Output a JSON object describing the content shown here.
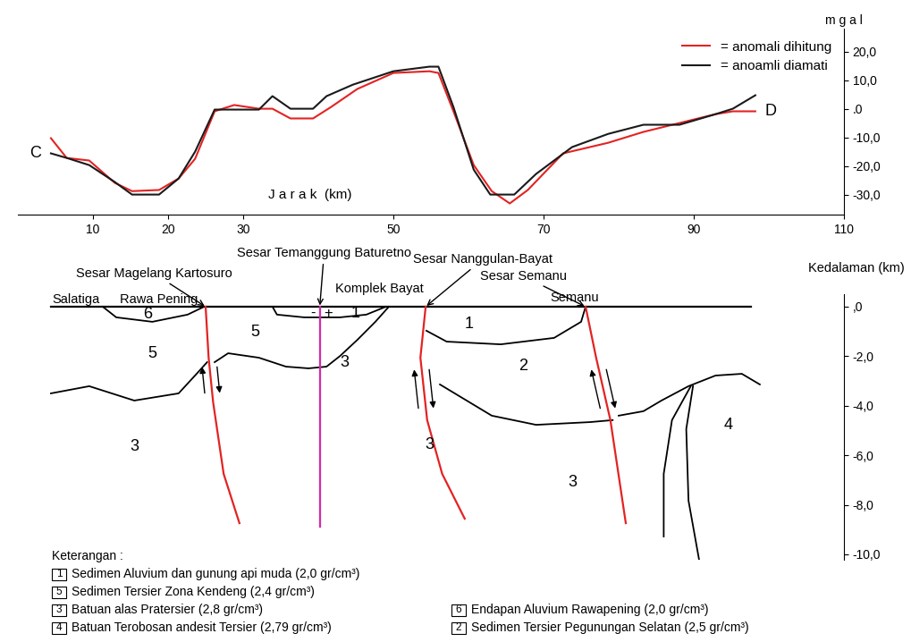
{
  "chart_data": [
    {
      "type": "line",
      "xlabel": "J a r a k  (km)",
      "ylabel": "m g a l",
      "xlim": [
        0,
        110
      ],
      "xticks": [
        10,
        20,
        30,
        50,
        70,
        90,
        110
      ],
      "ylim": [
        -37,
        28
      ],
      "yticks": [
        {
          "value": 20,
          "label": "20,0"
        },
        {
          "value": 10,
          "label": "10,0"
        },
        {
          "value": 0,
          "label": ".0"
        },
        {
          "value": -10,
          "label": "-10,0"
        },
        {
          "value": -20,
          "label": "-20,0"
        },
        {
          "value": -30,
          "label": "-30,0"
        }
      ],
      "legend": "upper right",
      "annotations": [
        "C",
        "D"
      ],
      "series": [
        {
          "name": "= anomali dihitung",
          "color": "#e32322",
          "x": [
            4.4,
            6.5,
            9.5,
            12.9,
            15.2,
            18.8,
            21.4,
            23.6,
            26.2,
            28.8,
            32.1,
            33.9,
            36.3,
            39.3,
            41.7,
            45.2,
            50.0,
            54.8,
            56.0,
            58.0,
            60.7,
            63.1,
            65.5,
            67.9,
            72.6,
            78.6,
            83.3,
            88.1,
            92.9,
            95.2,
            98.2
          ],
          "values": [
            -10.3,
            -17.2,
            -18.1,
            -25.9,
            -28.8,
            -28.4,
            -24.4,
            -17.5,
            -0.9,
            1.3,
            0.0,
            0.0,
            -3.4,
            -3.4,
            0.6,
            6.9,
            12.5,
            13.1,
            12.5,
            -0.9,
            -19.7,
            -28.8,
            -33.1,
            -28.4,
            -15.6,
            -11.9,
            -8.1,
            -5.0,
            -1.9,
            -0.9,
            -0.9
          ]
        },
        {
          "name": "= anoamli diamati",
          "color": "#1a1a1a",
          "x": [
            4.4,
            6.5,
            9.5,
            12.9,
            15.2,
            18.8,
            21.4,
            23.6,
            26.2,
            29.2,
            32.1,
            33.9,
            36.3,
            39.3,
            41.1,
            44.6,
            50.0,
            54.8,
            56.0,
            58.0,
            60.7,
            62.9,
            66.1,
            69.0,
            73.8,
            78.6,
            83.3,
            88.1,
            92.9,
            95.2,
            98.2
          ],
          "values": [
            -15.6,
            -17.2,
            -19.7,
            -25.6,
            -30.0,
            -30.0,
            -24.4,
            -15.0,
            -0.3,
            -0.3,
            -0.3,
            4.4,
            0.0,
            0.0,
            4.4,
            8.4,
            13.1,
            14.7,
            14.7,
            0.6,
            -21.3,
            -30.0,
            -30.0,
            -22.8,
            -13.4,
            -8.8,
            -5.6,
            -5.6,
            -1.9,
            0.0,
            4.7
          ]
        }
      ]
    },
    {
      "type": "section",
      "ylabel": "Kedalaman (km)",
      "ylim": [
        -10.2,
        0.5
      ],
      "yticks": [
        {
          "value": 0,
          "label": ",0"
        },
        {
          "value": -2,
          "label": "-2,0"
        },
        {
          "value": -4,
          "label": "-4,0"
        },
        {
          "value": -6,
          "label": "-6,0"
        },
        {
          "value": -8,
          "label": "-8,0"
        },
        {
          "value": -10,
          "label": "-10,0"
        }
      ],
      "tick_labels": "y",
      "surface": {
        "x": [
          4.4,
          97.6
        ],
        "depth": [
          0,
          0
        ]
      },
      "boundaries": [
        {
          "x": [
            11.3,
            13.1,
            17.9,
            22.6,
            24.8
          ],
          "depth": [
            0,
            -0.43,
            -0.61,
            -0.32,
            0
          ]
        },
        {
          "x": [
            4.4,
            9.5,
            15.5,
            21.4,
            23.8,
            25.2
          ],
          "depth": [
            -3.5,
            -3.21,
            -3.79,
            -3.5,
            -2.71,
            -2.24
          ]
        },
        {
          "x": [
            26.2,
            28.0,
            32.1,
            35.7,
            38.7,
            41.1,
            42.9,
            45.2,
            47.6,
            49.4
          ],
          "depth": [
            -2.24,
            -1.88,
            -2.06,
            -2.42,
            -2.49,
            -2.42,
            -1.99,
            -1.34,
            -0.61,
            0
          ]
        },
        {
          "x": [
            33.9,
            34.5,
            38.1,
            42.9,
            46.4,
            49.0
          ],
          "depth": [
            0,
            -0.32,
            -0.43,
            -0.43,
            -0.32,
            0
          ]
        },
        {
          "x": [
            54.4,
            57.1,
            64.3,
            71.4,
            75.0,
            75.6
          ],
          "depth": [
            -0.97,
            -1.41,
            -1.52,
            -1.26,
            -0.61,
            0
          ]
        },
        {
          "x": [
            56.2,
            63.1,
            69.0,
            76.2,
            79.2
          ],
          "depth": [
            -3.14,
            -4.4,
            -4.77,
            -4.66,
            -4.58
          ]
        },
        {
          "x": [
            80.0,
            83.3,
            85.7,
            89.3,
            92.9,
            96.4,
            98.8
          ],
          "depth": [
            -4.4,
            -4.22,
            -3.79,
            -3.21,
            -2.78,
            -2.71,
            -3.14
          ]
        },
        {
          "x": [
            89.6,
            87.1,
            86.0,
            86.0
          ],
          "depth": [
            -3.21,
            -4.58,
            -6.75,
            -9.28
          ]
        },
        {
          "x": [
            89.9,
            89.0,
            89.3,
            90.7
          ],
          "depth": [
            -3.21,
            -4.94,
            -7.83,
            -10.2
          ]
        }
      ],
      "faults": [
        {
          "name": "Sesar Magelang Kartosuro",
          "color": "#e32322",
          "x": [
            25.0,
            25.4,
            26.0,
            27.4,
            29.5
          ],
          "depth": [
            0,
            -2.06,
            -3.86,
            -6.75,
            -8.74
          ]
        },
        {
          "name": "Sesar Temanggung Baturetno",
          "color": "#d42aa8",
          "x": [
            40.2,
            40.2
          ],
          "depth": [
            0,
            -8.9
          ]
        },
        {
          "name": "Sesar Nanggulan-Bayat",
          "color": "#e32322",
          "x": [
            54.3,
            53.6,
            54.5,
            56.5,
            59.5
          ],
          "depth": [
            0,
            -2.06,
            -4.58,
            -6.75,
            -8.56
          ]
        },
        {
          "name": "Sesar Semanu",
          "color": "#e32322",
          "x": [
            75.6,
            77.0,
            78.9,
            80.95
          ],
          "depth": [
            0,
            -2.06,
            -4.58,
            -8.74
          ]
        }
      ],
      "places": [
        "Salatiga",
        "Rawa Pening",
        "Komplek Bayat",
        "Semanu"
      ],
      "unit_labels": [
        "6",
        "5",
        "5",
        "1",
        "3",
        "3",
        "1",
        "2",
        "3",
        "3",
        "4"
      ],
      "marks": [
        "-",
        "+"
      ],
      "legend_title": "Keterangan :",
      "legend_items": [
        {
          "unit": "1",
          "text": "Sedimen Aluvium dan gunung api muda (2,0 gr/cm³)"
        },
        {
          "unit": "5",
          "text": "Sedimen Tersier Zona Kendeng (2,4 gr/cm³)"
        },
        {
          "unit": "3",
          "text": "Batuan alas Pratersier (2,8 gr/cm³)"
        },
        {
          "unit": "4",
          "text": "Batuan Terobosan andesit Tersier (2,79 gr/cm³)"
        },
        {
          "unit": "6",
          "text": "Endapan Aluvium Rawapening (2,0 gr/cm³)"
        },
        {
          "unit": "2",
          "text": "Sedimen Tersier Pegunungan Selatan (2,5 gr/cm³)"
        }
      ]
    }
  ]
}
